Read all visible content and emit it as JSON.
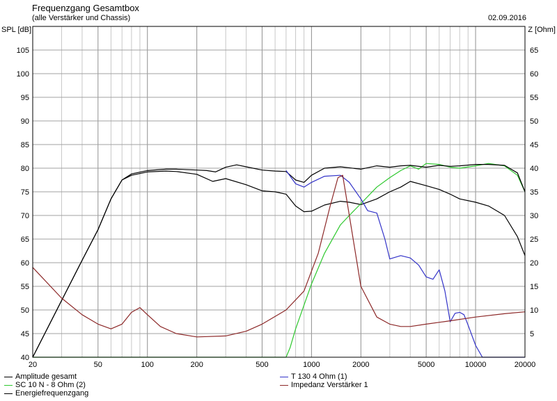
{
  "header": {
    "title": "Frequenzgang Gesamtbox",
    "subtitle": "(alle Verstärker und Chassis)",
    "date": "02.09.2016"
  },
  "chart_data": {
    "type": "line",
    "title": "Frequenzgang Gesamtbox",
    "subtitle": "(alle Verstärker und Chassis)",
    "xscale": "log",
    "xlim": [
      20,
      20000
    ],
    "xticks": [
      20,
      50,
      100,
      200,
      500,
      1000,
      2000,
      5000,
      10000,
      20000
    ],
    "ylabel": "SPL [dB]",
    "ylim": [
      40,
      110
    ],
    "yticks": [
      40,
      45,
      50,
      55,
      60,
      65,
      70,
      75,
      80,
      85,
      90,
      95,
      100,
      105
    ],
    "y2label": "Z [Ohm]",
    "y2lim": [
      0,
      70
    ],
    "y2ticks": [
      5,
      10,
      15,
      20,
      25,
      30,
      35,
      40,
      45,
      50,
      55,
      60,
      65
    ],
    "grid": true,
    "legend_position": "bottom",
    "series": [
      {
        "name": "Amplitude gesamt",
        "color": "#000000",
        "axis": "left",
        "x": [
          20,
          30,
          40,
          50,
          60,
          70,
          80,
          100,
          130,
          150,
          200,
          250,
          300,
          400,
          500,
          600,
          700,
          800,
          900,
          1000,
          1200,
          1500,
          1700,
          2000,
          2500,
          3000,
          3500,
          4000,
          5000,
          6000,
          7000,
          8000,
          10000,
          12000,
          15000,
          18000,
          20000
        ],
        "y": [
          40,
          52,
          60.5,
          67,
          73.5,
          77.5,
          78.5,
          79.2,
          79.4,
          79.3,
          78.7,
          77.2,
          77.8,
          76.5,
          75.2,
          75,
          74.5,
          72,
          70.8,
          70.9,
          72.2,
          73,
          72.8,
          72.3,
          73.5,
          75,
          76,
          77.2,
          76.3,
          75.5,
          74.5,
          73.5,
          72.8,
          72,
          70,
          65.5,
          61.5
        ]
      },
      {
        "name": "SC 10 N - 8 Ohm (2)",
        "color": "#2ec82e",
        "axis": "left",
        "x": [
          20,
          100,
          500,
          700,
          740,
          800,
          900,
          1000,
          1200,
          1500,
          1700,
          2000,
          2500,
          3000,
          3500,
          4000,
          4500,
          5000,
          6000,
          7000,
          8000,
          10000,
          12000,
          15000,
          18000,
          20000
        ],
        "y": [
          40,
          40,
          40,
          40,
          42,
          46,
          51,
          55.5,
          62,
          68,
          70,
          72.5,
          76,
          78,
          79.5,
          80.5,
          79.8,
          81,
          80.8,
          80.2,
          80,
          80.5,
          81,
          80.5,
          78.5,
          75
        ]
      },
      {
        "name": "Energiefrequenzgang",
        "color": "#000000",
        "axis": "left",
        "x": [
          20,
          30,
          40,
          50,
          60,
          70,
          80,
          100,
          130,
          150,
          200,
          230,
          260,
          300,
          350,
          400,
          500,
          600,
          700,
          800,
          900,
          1000,
          1200,
          1500,
          2000,
          2500,
          3000,
          3500,
          4000,
          5000,
          6000,
          7000,
          8000,
          10000,
          12000,
          15000,
          18000,
          20000
        ],
        "y": [
          40,
          52,
          60.5,
          67,
          73.5,
          77.5,
          78.8,
          79.5,
          79.8,
          79.8,
          79.6,
          79.5,
          79.2,
          80.2,
          80.7,
          80.3,
          79.6,
          79.4,
          79.3,
          77.5,
          77,
          78.5,
          80,
          80.3,
          79.8,
          80.5,
          80.2,
          80.5,
          80.6,
          80.2,
          80.6,
          80.4,
          80.5,
          80.8,
          80.8,
          80.6,
          79,
          75
        ]
      },
      {
        "name": "T 130 4 Ohm (1)",
        "color": "#3232c8",
        "axis": "left",
        "x": [
          700,
          800,
          900,
          1000,
          1200,
          1500,
          1700,
          2000,
          2200,
          2500,
          2800,
          3000,
          3500,
          4000,
          4500,
          5000,
          5500,
          6000,
          6500,
          7000,
          7500,
          8000,
          8500,
          9000,
          10000,
          11000,
          20000
        ],
        "y": [
          79.5,
          76.7,
          76,
          77,
          78.3,
          78.5,
          77,
          73.5,
          71,
          70.5,
          65,
          60.8,
          61.5,
          61,
          59.5,
          57,
          56.5,
          58.5,
          54,
          47.5,
          49.3,
          49.5,
          49,
          46.8,
          42.5,
          40,
          40
        ]
      },
      {
        "name": "Impedanz Verstärker 1",
        "color": "#8c2828",
        "axis": "right",
        "x": [
          20,
          30,
          40,
          50,
          60,
          70,
          80,
          90,
          100,
          120,
          150,
          200,
          300,
          400,
          500,
          700,
          900,
          1100,
          1300,
          1450,
          1550,
          1700,
          2000,
          2500,
          3000,
          3500,
          4000,
          5000,
          7000,
          10000,
          15000,
          20000
        ],
        "y": [
          19,
          12.5,
          9,
          7,
          6,
          7,
          9.5,
          10.5,
          9,
          6.5,
          5,
          4.3,
          4.5,
          5.5,
          7,
          10,
          14,
          22,
          32,
          38,
          38.5,
          30,
          15,
          8.5,
          7,
          6.5,
          6.5,
          7,
          7.7,
          8.5,
          9.2,
          9.6
        ]
      }
    ]
  },
  "legend": [
    {
      "label": "Amplitude gesamt",
      "color": "#000000"
    },
    {
      "label": "SC 10 N - 8 Ohm (2)",
      "color": "#2ec82e"
    },
    {
      "label": "Energiefrequenzgang",
      "color": "#000000"
    },
    {
      "label": "T 130 4 Ohm (1)",
      "color": "#3232c8"
    },
    {
      "label": "Impedanz Verstärker 1",
      "color": "#8c2828"
    }
  ]
}
